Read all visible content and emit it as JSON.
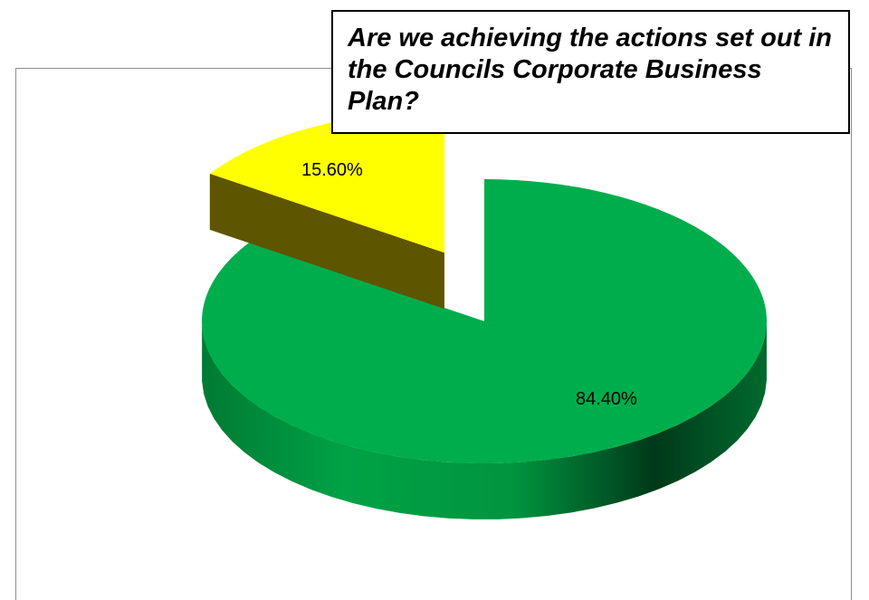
{
  "chart_data": {
    "type": "pie",
    "title": "Are we achieving the actions set out in the Councils Corporate Business Plan?",
    "slices": [
      {
        "value": 84.4,
        "label": "84.40%",
        "color": "#00ad4c",
        "side_light": "#00a246",
        "side_dark": "#00391a"
      },
      {
        "value": 15.6,
        "label": "15.60%",
        "color": "#ffff00",
        "side_light": "#7a6e00",
        "side_dark": "#5e5500",
        "exploded": true
      }
    ],
    "legend": "none",
    "style": "3d"
  }
}
